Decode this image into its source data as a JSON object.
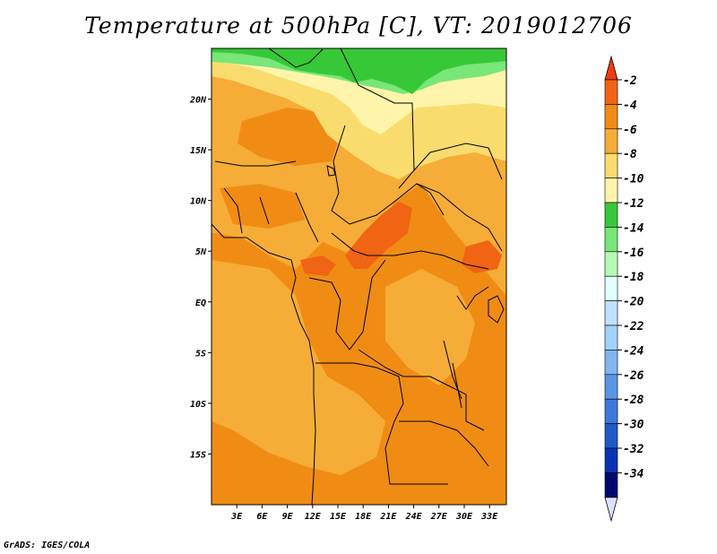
{
  "title": "Temperature at 500hPa [C], VT: 2019012706",
  "credit": "GrADS: IGES/COLA",
  "map": {
    "lon_ticks": [
      "3E",
      "6E",
      "9E",
      "12E",
      "15E",
      "18E",
      "21E",
      "24E",
      "27E",
      "30E",
      "33E"
    ],
    "lat_ticks": [
      "20N",
      "15N",
      "10N",
      "5N",
      "EQ",
      "5S",
      "10S",
      "15S"
    ],
    "lon_range": [
      0,
      35
    ],
    "lat_range": [
      -20,
      25
    ],
    "border_color": "#000000"
  },
  "colorbar": {
    "labels": [
      "-2",
      "-4",
      "-6",
      "-8",
      "-10",
      "-12",
      "-14",
      "-16",
      "-18",
      "-20",
      "-22",
      "-24",
      "-26",
      "-28",
      "-30",
      "-32",
      "-34"
    ],
    "top_color": "#f03c14",
    "colors": [
      "#f06414",
      "#f08c14",
      "#f5ad37",
      "#fadc6e",
      "#fff5aa",
      "#37c837",
      "#78e678",
      "#b4fab4",
      "#e1ffff",
      "#bfe2fa",
      "#a0d2fa",
      "#82b4f0",
      "#5a96e6",
      "#3c78dc",
      "#1e5ac8",
      "#0a32b4",
      "#000a6e"
    ],
    "bottom_color": "#e1e1ff"
  },
  "chart_data": {
    "type": "heatmap",
    "title": "Temperature at 500hPa [C], VT: 2019012706",
    "variable": "Temperature at 500hPa",
    "units": "C",
    "valid_time": "2019012706",
    "x_range": [
      0,
      35
    ],
    "y_range": [
      -20,
      25
    ],
    "contour_levels": [
      -34,
      -32,
      -30,
      -28,
      -26,
      -24,
      -22,
      -20,
      -18,
      -16,
      -14,
      -12,
      -10,
      -8,
      -6,
      -4,
      -2
    ]
  }
}
